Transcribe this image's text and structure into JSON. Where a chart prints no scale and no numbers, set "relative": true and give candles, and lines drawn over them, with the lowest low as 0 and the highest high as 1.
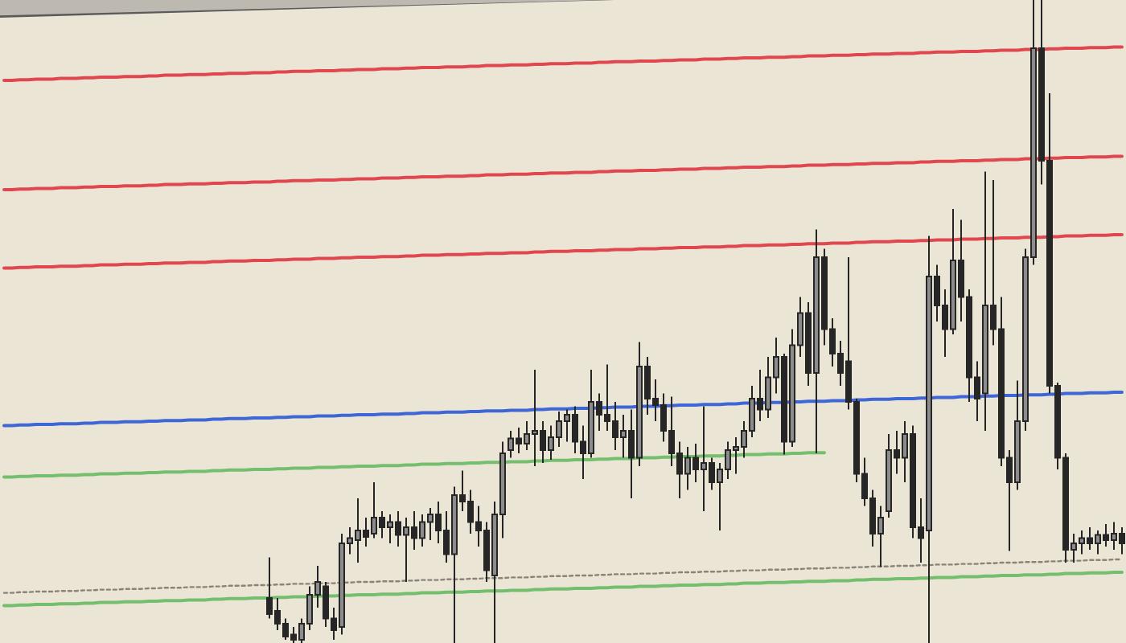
{
  "chart_data": {
    "type": "candlestick",
    "relative": true,
    "color": "#262626",
    "categories": [
      null,
      null,
      null,
      null,
      null,
      null,
      null,
      null,
      null,
      null,
      null,
      null,
      null,
      null,
      null,
      null,
      null,
      null,
      null,
      null,
      null,
      null,
      null,
      null,
      null,
      null,
      null,
      null,
      null,
      null,
      null,
      null,
      null,
      null,
      null,
      null,
      null,
      null,
      null,
      null,
      null,
      null,
      null,
      null,
      null,
      null,
      null,
      null,
      null,
      null,
      null,
      null,
      null,
      null,
      null,
      null,
      null,
      null,
      null,
      null,
      null,
      null,
      null,
      null,
      null,
      null,
      null,
      null,
      null,
      null,
      null,
      null,
      null,
      null,
      null,
      null,
      null,
      null,
      null,
      null,
      null,
      null,
      null,
      null,
      null,
      null,
      null,
      null,
      null,
      null,
      null,
      null,
      null,
      null,
      null,
      null,
      null,
      null,
      null,
      null,
      null,
      null,
      null,
      null,
      null,
      null,
      null,
      null,
      null,
      null,
      null,
      null,
      null,
      null,
      null,
      null,
      null,
      null,
      null,
      null,
      null,
      null,
      null,
      null,
      null,
      null,
      null,
      null,
      null,
      null,
      null,
      null,
      null,
      null,
      null,
      null,
      null,
      null,
      null,
      null
    ],
    "ohlc": [
      null,
      null,
      null,
      null,
      null,
      null,
      null,
      null,
      null,
      null,
      null,
      null,
      null,
      null,
      null,
      null,
      null,
      null,
      null,
      null,
      null,
      null,
      null,
      null,
      null,
      null,
      null,
      null,
      null,
      null,
      null,
      null,
      null,
      [
        0.07,
        0.133,
        0.038,
        0.045
      ],
      [
        0.05,
        0.07,
        0.02,
        0.03
      ],
      [
        0.03,
        0.038,
        0.005,
        0.01
      ],
      [
        0.013,
        0.025,
        0,
        0.005
      ],
      [
        0.005,
        0.038,
        0,
        0.03
      ],
      [
        0.03,
        0.088,
        0.02,
        0.075
      ],
      [
        0.075,
        0.12,
        0.055,
        0.095
      ],
      [
        0.088,
        0.095,
        0.025,
        0.038
      ],
      [
        0.038,
        0.055,
        0.005,
        0.02
      ],
      [
        0.025,
        0.17,
        0.013,
        0.155
      ],
      [
        0.155,
        0.18,
        0.138,
        0.163
      ],
      [
        0.16,
        0.225,
        0.125,
        0.175
      ],
      [
        0.175,
        0.195,
        0.15,
        0.165
      ],
      [
        0.17,
        0.25,
        0.163,
        0.195
      ],
      [
        0.195,
        0.205,
        0.163,
        0.18
      ],
      [
        0.18,
        0.2,
        0.155,
        0.188
      ],
      [
        0.188,
        0.205,
        0.15,
        0.168
      ],
      [
        0.168,
        0.195,
        0.095,
        0.18
      ],
      [
        0.18,
        0.205,
        0.145,
        0.163
      ],
      [
        0.163,
        0.2,
        0.15,
        0.188
      ],
      [
        0.188,
        0.21,
        0.16,
        0.2
      ],
      [
        0.2,
        0.22,
        0.155,
        0.175
      ],
      [
        0.175,
        0.205,
        0.125,
        0.138
      ],
      [
        0.138,
        0.243,
        0,
        0.23
      ],
      [
        0.23,
        0.268,
        0.205,
        0.22
      ],
      [
        0.22,
        0.238,
        0.17,
        0.188
      ],
      [
        0.188,
        0.213,
        0.15,
        0.175
      ],
      [
        0.175,
        0.188,
        0.095,
        0.113
      ],
      [
        0.105,
        0.22,
        0,
        0.2
      ],
      [
        0.2,
        0.313,
        0.163,
        0.295
      ],
      [
        0.3,
        0.33,
        0.288,
        0.318
      ],
      [
        0.318,
        0.335,
        0.295,
        0.31
      ],
      [
        0.31,
        0.345,
        0.3,
        0.325
      ],
      [
        0.325,
        0.425,
        0.275,
        0.33
      ],
      [
        0.33,
        0.345,
        0.28,
        0.3
      ],
      [
        0.3,
        0.338,
        0.285,
        0.32
      ],
      [
        0.32,
        0.36,
        0.305,
        0.345
      ],
      [
        0.345,
        0.363,
        0.313,
        0.355
      ],
      [
        0.355,
        0.368,
        0.295,
        0.313
      ],
      [
        0.313,
        0.338,
        0.255,
        0.295
      ],
      [
        0.295,
        0.425,
        0.288,
        0.375
      ],
      [
        0.375,
        0.388,
        0.33,
        0.355
      ],
      [
        0.355,
        0.433,
        0.33,
        0.345
      ],
      [
        0.345,
        0.375,
        0.3,
        0.32
      ],
      [
        0.32,
        0.355,
        0.288,
        0.33
      ],
      [
        0.33,
        0.363,
        0.225,
        0.288
      ],
      [
        0.288,
        0.468,
        0.275,
        0.43
      ],
      [
        0.43,
        0.445,
        0.355,
        0.38
      ],
      [
        0.38,
        0.41,
        0.345,
        0.37
      ],
      [
        0.37,
        0.388,
        0.313,
        0.33
      ],
      [
        0.33,
        0.383,
        0.275,
        0.295
      ],
      [
        0.295,
        0.313,
        0.225,
        0.263
      ],
      [
        0.263,
        0.305,
        0.238,
        0.288
      ],
      [
        0.288,
        0.31,
        0.25,
        0.27
      ],
      [
        0.27,
        0.368,
        0.205,
        0.28
      ],
      [
        0.28,
        0.288,
        0.238,
        0.25
      ],
      [
        0.25,
        0.28,
        0.175,
        0.27
      ],
      [
        0.27,
        0.313,
        0.255,
        0.3
      ],
      [
        0.3,
        0.32,
        0.263,
        0.305
      ],
      [
        0.305,
        0.345,
        0.288,
        0.33
      ],
      [
        0.33,
        0.4,
        0.32,
        0.38
      ],
      [
        0.38,
        0.425,
        0.345,
        0.363
      ],
      [
        0.363,
        0.445,
        0.35,
        0.413
      ],
      [
        0.413,
        0.475,
        0.388,
        0.445
      ],
      [
        0.445,
        0.45,
        0.293,
        0.313
      ],
      [
        0.313,
        0.488,
        0.305,
        0.463
      ],
      [
        0.463,
        0.538,
        0.445,
        0.513
      ],
      [
        0.513,
        0.53,
        0.4,
        0.42
      ],
      [
        0.42,
        0.643,
        0.295,
        0.6
      ],
      [
        0.6,
        0.613,
        0.463,
        0.488
      ],
      [
        0.488,
        0.505,
        0.43,
        0.45
      ],
      [
        0.45,
        0.47,
        0.4,
        0.42
      ],
      [
        0.438,
        0.6,
        0.363,
        0.375
      ],
      [
        0.375,
        0.38,
        0.25,
        0.263
      ],
      [
        0.263,
        0.288,
        0.213,
        0.225
      ],
      [
        0.225,
        0.238,
        0.15,
        0.17
      ],
      [
        0.17,
        0.213,
        0.118,
        0.195
      ],
      [
        0.205,
        0.325,
        0.195,
        0.3
      ],
      [
        0.3,
        0.33,
        0.263,
        0.288
      ],
      [
        0.288,
        0.345,
        0.25,
        0.325
      ],
      [
        0.325,
        0.338,
        0.163,
        0.18
      ],
      [
        0.18,
        0.225,
        0.125,
        0.163
      ],
      [
        0.175,
        0.633,
        0,
        0.57
      ],
      [
        0.57,
        0.588,
        0.5,
        0.525
      ],
      [
        0.525,
        0.55,
        0.445,
        0.488
      ],
      [
        0.488,
        0.675,
        0.48,
        0.595
      ],
      [
        0.595,
        0.658,
        0.5,
        0.538
      ],
      [
        0.538,
        0.55,
        0.375,
        0.413
      ],
      [
        0.413,
        0.438,
        0.345,
        0.38
      ],
      [
        0.388,
        0.733,
        0.33,
        0.525
      ],
      [
        0.525,
        0.72,
        0.463,
        0.488
      ],
      [
        0.488,
        0.538,
        0.275,
        0.288
      ],
      [
        0.288,
        0.3,
        0.143,
        0.25
      ],
      [
        0.25,
        0.408,
        0.238,
        0.345
      ],
      [
        0.345,
        0.613,
        0.33,
        0.6
      ],
      [
        0.6,
        1,
        0.588,
        0.925
      ],
      [
        0.925,
        1,
        0.713,
        0.75
      ],
      [
        0.75,
        0.855,
        0.388,
        0.4
      ],
      [
        0.4,
        0.405,
        0.27,
        0.288
      ],
      [
        0.288,
        0.295,
        0.125,
        0.145
      ],
      [
        0.145,
        0.17,
        0.125,
        0.155
      ],
      [
        0.155,
        0.175,
        0.138,
        0.163
      ],
      [
        0.163,
        0.18,
        0.145,
        0.155
      ],
      [
        0.155,
        0.175,
        0.138,
        0.168
      ],
      [
        0.168,
        0.185,
        0.15,
        0.16
      ],
      [
        0.16,
        0.188,
        0.145,
        0.17
      ],
      [
        0.17,
        0.18,
        0.138,
        0.155
      ]
    ],
    "series": [
      {
        "type": "line",
        "color": "#e0474f",
        "line_style": "solid",
        "values": [
          0.875,
          0.875,
          0.876,
          0.876,
          0.877,
          0.877,
          0.877,
          0.878,
          0.878,
          0.878,
          0.879,
          0.879,
          0.88,
          0.88,
          0.88,
          0.881,
          0.881,
          0.881,
          0.882,
          0.882,
          0.883,
          0.883,
          0.883,
          0.884,
          0.884,
          0.884,
          0.885,
          0.885,
          0.886,
          0.886,
          0.886,
          0.887,
          0.887,
          0.887,
          0.888,
          0.888,
          0.889,
          0.889,
          0.889,
          0.89,
          0.89,
          0.89,
          0.891,
          0.891,
          0.892,
          0.892,
          0.892,
          0.893,
          0.893,
          0.893,
          0.894,
          0.894,
          0.895,
          0.895,
          0.895,
          0.896,
          0.896,
          0.896,
          0.897,
          0.897,
          0.898,
          0.898,
          0.898,
          0.899,
          0.899,
          0.899,
          0.9,
          0.9,
          0.901,
          0.901,
          0.901,
          0.902,
          0.902,
          0.902,
          0.903,
          0.903,
          0.904,
          0.904,
          0.904,
          0.905,
          0.905,
          0.905,
          0.906,
          0.906,
          0.907,
          0.907,
          0.907,
          0.908,
          0.908,
          0.908,
          0.909,
          0.909,
          0.91,
          0.91,
          0.91,
          0.911,
          0.911,
          0.911,
          0.912,
          0.912,
          0.913,
          0.913,
          0.913,
          0.914,
          0.914,
          0.914,
          0.915,
          0.915,
          0.916,
          0.916,
          0.916,
          0.917,
          0.917,
          0.917,
          0.918,
          0.918,
          0.919,
          0.919,
          0.919,
          0.92,
          0.92,
          0.92,
          0.921,
          0.921,
          0.922,
          0.922,
          0.922,
          0.923,
          0.923,
          0.923,
          0.924,
          0.924,
          0.925,
          0.925,
          0.925,
          0.926,
          0.926,
          0.926,
          0.927,
          0.927
        ]
      },
      {
        "type": "line",
        "color": "#e0474f",
        "line_style": "solid",
        "values": [
          0.705,
          0.705,
          0.706,
          0.706,
          0.707,
          0.707,
          0.707,
          0.708,
          0.708,
          0.708,
          0.709,
          0.709,
          0.71,
          0.71,
          0.71,
          0.711,
          0.711,
          0.711,
          0.712,
          0.712,
          0.713,
          0.713,
          0.713,
          0.714,
          0.714,
          0.714,
          0.715,
          0.715,
          0.716,
          0.716,
          0.716,
          0.717,
          0.717,
          0.717,
          0.718,
          0.718,
          0.719,
          0.719,
          0.719,
          0.72,
          0.72,
          0.72,
          0.721,
          0.721,
          0.722,
          0.722,
          0.722,
          0.723,
          0.723,
          0.723,
          0.724,
          0.724,
          0.725,
          0.725,
          0.725,
          0.726,
          0.726,
          0.726,
          0.727,
          0.727,
          0.728,
          0.728,
          0.728,
          0.729,
          0.729,
          0.729,
          0.73,
          0.73,
          0.731,
          0.731,
          0.731,
          0.732,
          0.732,
          0.732,
          0.733,
          0.733,
          0.734,
          0.734,
          0.734,
          0.735,
          0.735,
          0.735,
          0.736,
          0.736,
          0.737,
          0.737,
          0.737,
          0.738,
          0.738,
          0.738,
          0.739,
          0.739,
          0.74,
          0.74,
          0.74,
          0.741,
          0.741,
          0.741,
          0.742,
          0.742,
          0.743,
          0.743,
          0.743,
          0.744,
          0.744,
          0.744,
          0.745,
          0.745,
          0.746,
          0.746,
          0.746,
          0.747,
          0.747,
          0.747,
          0.748,
          0.748,
          0.749,
          0.749,
          0.749,
          0.75,
          0.75,
          0.75,
          0.751,
          0.751,
          0.752,
          0.752,
          0.752,
          0.753,
          0.753,
          0.753,
          0.754,
          0.754,
          0.755,
          0.755,
          0.755,
          0.756,
          0.756,
          0.756,
          0.757,
          0.757
        ]
      },
      {
        "type": "line",
        "color": "#e0474f",
        "line_style": "solid",
        "values": [
          0.583,
          0.583,
          0.584,
          0.584,
          0.585,
          0.585,
          0.585,
          0.586,
          0.586,
          0.586,
          0.587,
          0.587,
          0.588,
          0.588,
          0.588,
          0.589,
          0.589,
          0.589,
          0.59,
          0.59,
          0.591,
          0.591,
          0.591,
          0.592,
          0.592,
          0.592,
          0.593,
          0.593,
          0.594,
          0.594,
          0.594,
          0.595,
          0.595,
          0.595,
          0.596,
          0.596,
          0.597,
          0.597,
          0.597,
          0.598,
          0.598,
          0.598,
          0.599,
          0.599,
          0.6,
          0.6,
          0.6,
          0.601,
          0.601,
          0.601,
          0.602,
          0.602,
          0.603,
          0.603,
          0.603,
          0.604,
          0.604,
          0.604,
          0.605,
          0.605,
          0.606,
          0.606,
          0.606,
          0.607,
          0.607,
          0.607,
          0.608,
          0.608,
          0.609,
          0.609,
          0.609,
          0.61,
          0.61,
          0.61,
          0.611,
          0.611,
          0.612,
          0.612,
          0.612,
          0.613,
          0.613,
          0.613,
          0.614,
          0.614,
          0.615,
          0.615,
          0.615,
          0.616,
          0.616,
          0.616,
          0.617,
          0.617,
          0.618,
          0.618,
          0.618,
          0.619,
          0.619,
          0.619,
          0.62,
          0.62,
          0.621,
          0.621,
          0.621,
          0.622,
          0.622,
          0.622,
          0.623,
          0.623,
          0.624,
          0.624,
          0.624,
          0.625,
          0.625,
          0.625,
          0.626,
          0.626,
          0.627,
          0.627,
          0.627,
          0.628,
          0.628,
          0.628,
          0.629,
          0.629,
          0.63,
          0.63,
          0.63,
          0.631,
          0.631,
          0.631,
          0.632,
          0.632,
          0.633,
          0.633,
          0.633,
          0.634,
          0.634,
          0.634,
          0.635,
          0.635
        ]
      },
      {
        "type": "line",
        "color": "#3f66d6",
        "line_style": "solid",
        "values": [
          0.338,
          0.338,
          0.339,
          0.339,
          0.34,
          0.34,
          0.34,
          0.341,
          0.341,
          0.341,
          0.342,
          0.342,
          0.343,
          0.343,
          0.343,
          0.344,
          0.344,
          0.344,
          0.345,
          0.345,
          0.346,
          0.346,
          0.346,
          0.347,
          0.347,
          0.347,
          0.348,
          0.348,
          0.349,
          0.349,
          0.349,
          0.35,
          0.35,
          0.35,
          0.351,
          0.351,
          0.352,
          0.352,
          0.352,
          0.353,
          0.353,
          0.353,
          0.354,
          0.354,
          0.355,
          0.355,
          0.355,
          0.356,
          0.356,
          0.356,
          0.357,
          0.357,
          0.358,
          0.358,
          0.358,
          0.359,
          0.359,
          0.359,
          0.36,
          0.36,
          0.361,
          0.361,
          0.361,
          0.362,
          0.362,
          0.362,
          0.363,
          0.363,
          0.364,
          0.364,
          0.364,
          0.365,
          0.365,
          0.365,
          0.366,
          0.366,
          0.367,
          0.367,
          0.367,
          0.368,
          0.368,
          0.368,
          0.369,
          0.369,
          0.37,
          0.37,
          0.37,
          0.371,
          0.371,
          0.371,
          0.372,
          0.372,
          0.373,
          0.373,
          0.373,
          0.374,
          0.374,
          0.374,
          0.375,
          0.375,
          0.376,
          0.376,
          0.376,
          0.377,
          0.377,
          0.377,
          0.378,
          0.378,
          0.379,
          0.379,
          0.379,
          0.38,
          0.38,
          0.38,
          0.381,
          0.381,
          0.382,
          0.382,
          0.382,
          0.383,
          0.383,
          0.383,
          0.384,
          0.384,
          0.385,
          0.385,
          0.385,
          0.386,
          0.386,
          0.386,
          0.387,
          0.387,
          0.388,
          0.388,
          0.388,
          0.389,
          0.389,
          0.389,
          0.39,
          0.39
        ]
      },
      {
        "type": "line",
        "color": "#74bf6e",
        "line_style": "solid",
        "values": [
          0.258,
          0.258,
          0.259,
          0.259,
          0.26,
          0.26,
          0.26,
          0.261,
          0.261,
          0.261,
          0.262,
          0.262,
          0.263,
          0.263,
          0.263,
          0.264,
          0.264,
          0.264,
          0.265,
          0.265,
          0.266,
          0.266,
          0.266,
          0.267,
          0.267,
          0.267,
          0.268,
          0.268,
          0.269,
          0.269,
          0.269,
          0.27,
          0.27,
          0.27,
          0.271,
          0.271,
          0.272,
          0.272,
          0.272,
          0.273,
          0.273,
          0.273,
          0.274,
          0.274,
          0.275,
          0.275,
          0.275,
          0.276,
          0.276,
          0.276,
          0.277,
          0.277,
          0.278,
          0.278,
          0.278,
          0.279,
          0.279,
          0.279,
          0.28,
          0.28,
          0.281,
          0.281,
          0.281,
          0.282,
          0.282,
          0.282,
          0.283,
          0.283,
          0.284,
          0.284,
          0.284,
          0.285,
          0.285,
          0.285,
          0.286,
          0.286,
          0.287,
          0.287,
          0.287,
          0.288,
          0.288,
          0.288,
          0.289,
          0.289,
          0.29,
          0.29,
          0.29,
          0.291,
          0.291,
          0.291,
          0.292,
          0.292,
          0.293,
          0.293,
          0.293,
          0.294,
          0.294,
          0.294,
          0.295,
          0.295,
          0.296,
          0.296,
          0.296,
          null,
          null,
          null,
          null,
          null,
          null,
          null,
          null,
          null,
          null,
          null,
          null,
          null,
          null,
          null,
          null,
          null,
          null,
          null,
          null,
          null,
          null,
          null,
          null,
          null,
          null,
          null,
          null,
          null,
          null,
          null,
          null,
          null,
          null,
          null,
          null,
          null
        ]
      },
      {
        "type": "line",
        "color": "#8a8478",
        "line_style": "dotted",
        "values": [
          0.078,
          0.078,
          0.079,
          0.079,
          0.08,
          0.08,
          0.08,
          0.081,
          0.081,
          0.081,
          0.082,
          0.082,
          0.083,
          0.083,
          0.083,
          0.084,
          0.084,
          0.084,
          0.085,
          0.085,
          0.086,
          0.086,
          0.086,
          0.087,
          0.087,
          0.087,
          0.088,
          0.088,
          0.089,
          0.089,
          0.089,
          0.09,
          0.09,
          0.09,
          0.091,
          0.091,
          0.092,
          0.092,
          0.092,
          0.093,
          0.093,
          0.093,
          0.094,
          0.094,
          0.095,
          0.095,
          0.095,
          0.096,
          0.096,
          0.096,
          0.097,
          0.097,
          0.098,
          0.098,
          0.098,
          0.099,
          0.099,
          0.099,
          0.1,
          0.1,
          0.101,
          0.101,
          0.101,
          0.102,
          0.102,
          0.102,
          0.103,
          0.103,
          0.104,
          0.104,
          0.104,
          0.105,
          0.105,
          0.105,
          0.106,
          0.106,
          0.107,
          0.107,
          0.107,
          0.108,
          0.108,
          0.108,
          0.109,
          0.109,
          0.11,
          0.11,
          0.11,
          0.111,
          0.111,
          0.111,
          0.112,
          0.112,
          0.113,
          0.113,
          0.113,
          0.114,
          0.114,
          0.114,
          0.115,
          0.115,
          0.116,
          0.116,
          0.116,
          0.117,
          0.117,
          0.117,
          0.118,
          0.118,
          0.119,
          0.119,
          0.119,
          0.12,
          0.12,
          0.12,
          0.121,
          0.121,
          0.122,
          0.122,
          0.122,
          0.123,
          0.123,
          0.123,
          0.124,
          0.124,
          0.125,
          0.125,
          0.125,
          0.126,
          0.126,
          0.126,
          0.127,
          0.127,
          0.128,
          0.128,
          0.128,
          0.129,
          0.129,
          0.129,
          0.13,
          0.13
        ]
      },
      {
        "type": "line",
        "color": "#74bf6e",
        "line_style": "solid",
        "values": [
          0.058,
          0.058,
          0.059,
          0.059,
          0.06,
          0.06,
          0.06,
          0.061,
          0.061,
          0.061,
          0.062,
          0.062,
          0.063,
          0.063,
          0.063,
          0.064,
          0.064,
          0.064,
          0.065,
          0.065,
          0.066,
          0.066,
          0.066,
          0.067,
          0.067,
          0.067,
          0.068,
          0.068,
          0.069,
          0.069,
          0.069,
          0.07,
          0.07,
          0.07,
          0.071,
          0.071,
          0.072,
          0.072,
          0.072,
          0.073,
          0.073,
          0.073,
          0.074,
          0.074,
          0.075,
          0.075,
          0.075,
          0.076,
          0.076,
          0.076,
          0.077,
          0.077,
          0.078,
          0.078,
          0.078,
          0.079,
          0.079,
          0.079,
          0.08,
          0.08,
          0.081,
          0.081,
          0.081,
          0.082,
          0.082,
          0.082,
          0.083,
          0.083,
          0.084,
          0.084,
          0.084,
          0.085,
          0.085,
          0.085,
          0.086,
          0.086,
          0.087,
          0.087,
          0.087,
          0.088,
          0.088,
          0.088,
          0.089,
          0.089,
          0.09,
          0.09,
          0.09,
          0.091,
          0.091,
          0.091,
          0.092,
          0.092,
          0.093,
          0.093,
          0.093,
          0.094,
          0.094,
          0.094,
          0.095,
          0.095,
          0.096,
          0.096,
          0.096,
          0.097,
          0.097,
          0.097,
          0.098,
          0.098,
          0.099,
          0.099,
          0.099,
          0.1,
          0.1,
          0.1,
          0.101,
          0.101,
          0.102,
          0.102,
          0.102,
          0.103,
          0.103,
          0.103,
          0.104,
          0.104,
          0.105,
          0.105,
          0.105,
          0.106,
          0.106,
          0.106,
          0.107,
          0.107,
          0.108,
          0.108,
          0.108,
          0.109,
          0.109,
          0.109,
          0.11,
          0.11
        ]
      }
    ]
  }
}
